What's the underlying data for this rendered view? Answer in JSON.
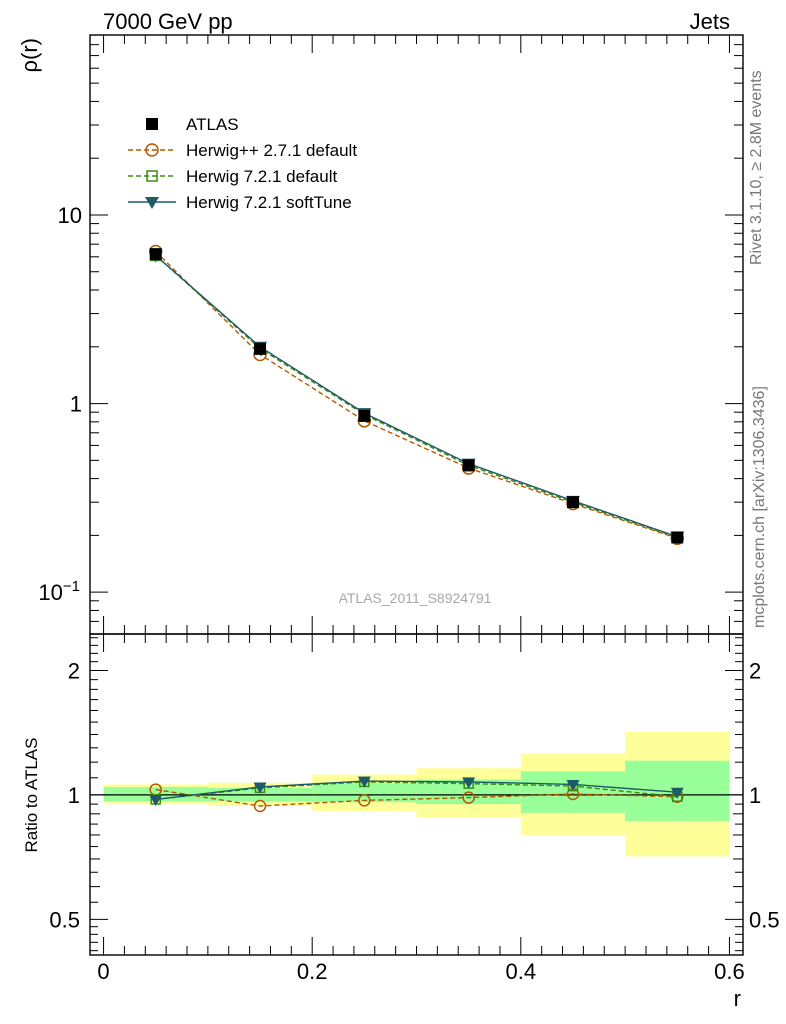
{
  "header": {
    "left_title": "7000 GeV pp",
    "right_title": "Jets"
  },
  "side_labels": {
    "rivet": "Rivet 3.1.10, ≥ 2.8M events",
    "mcplots": "mcplots.cern.ch [arXiv:1306.3436]"
  },
  "watermark": "ATLAS_2011_S8924791",
  "chart_data": [
    {
      "type": "line",
      "panel": "main",
      "ylabel": "ρ(r)",
      "yscale": "log",
      "ylim": [
        0.06,
        90
      ],
      "xlim": [
        -0.013,
        0.613
      ],
      "ytick_labels": [
        "10",
        "1",
        "10−1"
      ],
      "ytick_values": [
        10,
        1,
        0.1
      ],
      "legend_position": "top-left",
      "x": [
        0.05,
        0.15,
        0.25,
        0.35,
        0.45,
        0.55
      ],
      "series": [
        {
          "name": "ATLAS",
          "values": [
            6.2,
            1.95,
            0.86,
            0.47,
            0.3,
            0.195
          ],
          "color": "#000000",
          "marker": "filled-square",
          "line": "none"
        },
        {
          "name": "Herwig++ 2.7.1 default",
          "values": [
            6.4,
            1.82,
            0.81,
            0.455,
            0.295,
            0.193
          ],
          "color": "#b35900",
          "marker": "open-circle",
          "line": "dashed"
        },
        {
          "name": "Herwig 7.2.1 default",
          "values": [
            6.1,
            1.96,
            0.875,
            0.47,
            0.3,
            0.195
          ],
          "color": "#3a8a10",
          "marker": "open-square",
          "line": "dashed"
        },
        {
          "name": "Herwig 7.2.1 softTune",
          "values": [
            6.1,
            2.0,
            0.89,
            0.48,
            0.305,
            0.197
          ],
          "color": "#1e5a6a",
          "marker": "filled-triangle-down",
          "line": "solid"
        }
      ]
    },
    {
      "type": "line",
      "panel": "ratio",
      "ylabel": "Ratio to ATLAS",
      "xlabel": "r",
      "yscale": "log",
      "ylim": [
        0.41,
        2.45
      ],
      "xlim": [
        -0.013,
        0.613
      ],
      "ytick_labels": [
        "2",
        "1",
        "0.5"
      ],
      "ytick_values": [
        2,
        1,
        0.5
      ],
      "xtick_labels": [
        "0",
        "0.2",
        "0.4",
        "0.6"
      ],
      "xtick_values": [
        0,
        0.2,
        0.4,
        0.6
      ],
      "bands": [
        {
          "x0": 0.0,
          "x1": 0.1,
          "yellow": [
            0.95,
            1.06
          ],
          "green": [
            0.965,
            1.045
          ]
        },
        {
          "x0": 0.1,
          "x1": 0.2,
          "yellow": [
            0.94,
            1.07
          ],
          "green": [
            0.965,
            1.04
          ]
        },
        {
          "x0": 0.2,
          "x1": 0.3,
          "yellow": [
            0.915,
            1.12
          ],
          "green": [
            0.96,
            1.07
          ]
        },
        {
          "x0": 0.3,
          "x1": 0.4,
          "yellow": [
            0.88,
            1.16
          ],
          "green": [
            0.95,
            1.09
          ]
        },
        {
          "x0": 0.4,
          "x1": 0.5,
          "yellow": [
            0.8,
            1.26
          ],
          "green": [
            0.905,
            1.14
          ]
        },
        {
          "x0": 0.5,
          "x1": 0.6,
          "yellow": [
            0.71,
            1.42
          ],
          "green": [
            0.865,
            1.21
          ]
        }
      ],
      "x": [
        0.05,
        0.15,
        0.25,
        0.35,
        0.45,
        0.55
      ],
      "series": [
        {
          "name": "Herwig++ 2.7.1 default",
          "values": [
            1.03,
            0.94,
            0.97,
            0.985,
            1.005,
            0.99
          ],
          "color": "#b35900",
          "marker": "open-circle",
          "line": "dashed"
        },
        {
          "name": "Herwig 7.2.1 default",
          "values": [
            0.975,
            1.04,
            1.075,
            1.065,
            1.05,
            0.99
          ],
          "color": "#3a8a10",
          "marker": "open-square",
          "line": "dashed"
        },
        {
          "name": "Herwig 7.2.1 softTune",
          "values": [
            0.975,
            1.045,
            1.08,
            1.075,
            1.06,
            1.015
          ],
          "color": "#1e5a6a",
          "marker": "filled-triangle-down",
          "line": "solid"
        }
      ]
    }
  ]
}
